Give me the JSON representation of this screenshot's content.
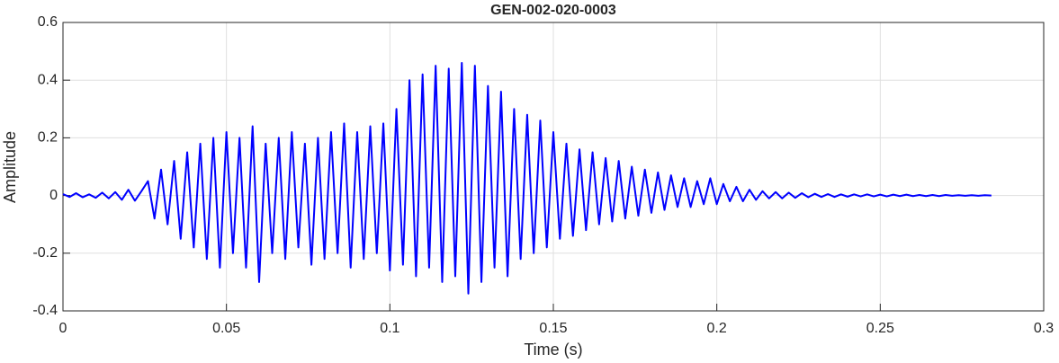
{
  "chart_data": {
    "type": "line",
    "title": "GEN-002-020-0003",
    "xlabel": "Time (s)",
    "ylabel": "Amplitude",
    "color": "#0000ff",
    "grid": true,
    "xlim": [
      0,
      0.3
    ],
    "xticks": [
      0,
      0.05,
      0.1,
      0.15,
      0.2,
      0.25,
      0.3
    ],
    "ylim": [
      -0.4,
      0.6
    ],
    "yticks": [
      -0.4,
      -0.2,
      0,
      0.2,
      0.4,
      0.6
    ],
    "x": [
      0,
      0.002,
      0.004,
      0.006,
      0.008,
      0.01,
      0.012,
      0.014,
      0.016,
      0.018,
      0.02,
      0.022,
      0.024,
      0.026,
      0.028,
      0.03,
      0.032,
      0.034,
      0.036,
      0.038,
      0.04,
      0.042,
      0.044,
      0.046,
      0.048,
      0.05,
      0.052,
      0.054,
      0.056,
      0.058,
      0.06,
      0.062,
      0.064,
      0.066,
      0.068,
      0.07,
      0.072,
      0.074,
      0.076,
      0.078,
      0.08,
      0.082,
      0.084,
      0.086,
      0.088,
      0.09,
      0.092,
      0.094,
      0.096,
      0.098,
      0.1,
      0.102,
      0.104,
      0.106,
      0.108,
      0.11,
      0.112,
      0.114,
      0.116,
      0.118,
      0.12,
      0.122,
      0.124,
      0.126,
      0.128,
      0.13,
      0.132,
      0.134,
      0.136,
      0.138,
      0.14,
      0.142,
      0.144,
      0.146,
      0.148,
      0.15,
      0.152,
      0.154,
      0.156,
      0.158,
      0.16,
      0.162,
      0.164,
      0.166,
      0.168,
      0.17,
      0.172,
      0.174,
      0.176,
      0.178,
      0.18,
      0.182,
      0.184,
      0.186,
      0.188,
      0.19,
      0.192,
      0.194,
      0.196,
      0.198,
      0.2,
      0.202,
      0.204,
      0.206,
      0.208,
      0.21,
      0.212,
      0.214,
      0.216,
      0.218,
      0.22,
      0.222,
      0.224,
      0.226,
      0.228,
      0.23,
      0.232,
      0.234,
      0.236,
      0.238,
      0.24,
      0.242,
      0.244,
      0.246,
      0.248,
      0.25,
      0.252,
      0.254,
      0.256,
      0.258,
      0.26,
      0.262,
      0.264,
      0.266,
      0.268,
      0.27,
      0.272,
      0.274,
      0.276,
      0.278,
      0.28,
      0.282,
      0.284
    ],
    "values": [
      0.005,
      -0.005,
      0.008,
      -0.006,
      0.004,
      -0.008,
      0.01,
      -0.01,
      0.012,
      -0.015,
      0.02,
      -0.018,
      0.015,
      0.05,
      -0.08,
      0.09,
      -0.1,
      0.12,
      -0.15,
      0.15,
      -0.18,
      0.18,
      -0.22,
      0.2,
      -0.25,
      0.22,
      -0.2,
      0.2,
      -0.25,
      0.24,
      -0.3,
      0.18,
      -0.2,
      0.2,
      -0.22,
      0.22,
      -0.18,
      0.18,
      -0.24,
      0.2,
      -0.22,
      0.22,
      -0.2,
      0.25,
      -0.25,
      0.22,
      -0.22,
      0.24,
      -0.2,
      0.25,
      -0.26,
      0.3,
      -0.24,
      0.4,
      -0.28,
      0.42,
      -0.25,
      0.45,
      -0.3,
      0.44,
      -0.28,
      0.46,
      -0.34,
      0.45,
      -0.3,
      0.38,
      -0.25,
      0.36,
      -0.28,
      0.3,
      -0.22,
      0.28,
      -0.2,
      0.26,
      -0.18,
      0.22,
      -0.15,
      0.18,
      -0.14,
      0.16,
      -0.12,
      0.15,
      -0.1,
      0.13,
      -0.09,
      0.12,
      -0.08,
      0.1,
      -0.07,
      0.09,
      -0.06,
      0.08,
      -0.05,
      0.07,
      -0.04,
      0.06,
      -0.04,
      0.05,
      -0.03,
      0.06,
      -0.03,
      0.04,
      -0.02,
      0.03,
      -0.02,
      0.02,
      -0.015,
      0.015,
      -0.01,
      0.012,
      -0.01,
      0.01,
      -0.008,
      0.008,
      -0.006,
      0.006,
      -0.005,
      0.005,
      -0.005,
      0.004,
      -0.004,
      0.004,
      -0.003,
      0.004,
      -0.003,
      0.003,
      -0.003,
      0.003,
      -0.002,
      0.003,
      -0.002,
      0.002,
      -0.002,
      0.002,
      -0.002,
      0.002,
      -0.001,
      0.001,
      -0.001,
      0.001,
      -0.001,
      0.001,
      0
    ]
  }
}
